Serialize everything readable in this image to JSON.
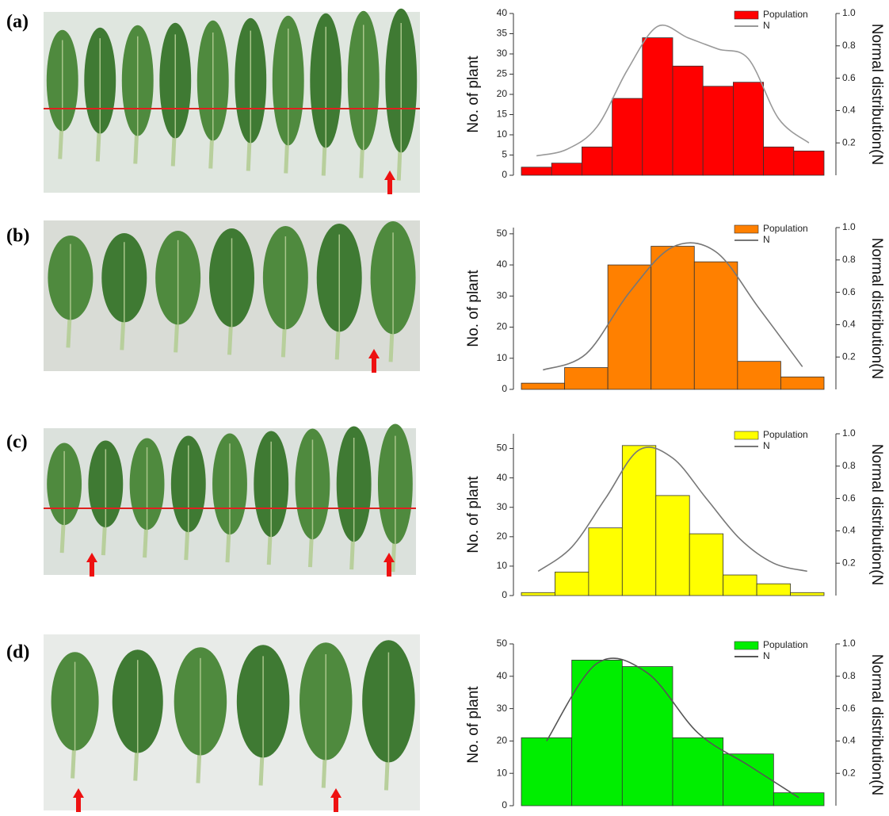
{
  "chart_data": [
    {
      "type": "bar",
      "label": "(a)",
      "ylabel": "No. of plant",
      "y2label": "Normal distribution(N",
      "categories": [
        null,
        null,
        null,
        null,
        null,
        null,
        null,
        null,
        null,
        null
      ],
      "series": [
        {
          "name": "Population",
          "color": "#ff0000",
          "values": [
            2,
            3,
            7,
            19,
            34,
            27,
            22,
            23,
            7,
            6
          ]
        },
        {
          "name": "N",
          "color": "#999999",
          "axis": "y2",
          "values": [
            0.12,
            0.16,
            0.3,
            0.65,
            0.92,
            0.85,
            0.78,
            0.72,
            0.35,
            0.2
          ]
        }
      ],
      "ylim": [
        0,
        40
      ],
      "yticks": [
        0,
        5,
        10,
        15,
        20,
        25,
        30,
        35,
        40
      ],
      "y2lim": [
        0,
        1.0
      ],
      "y2ticks": [
        {
          "value": 0.2,
          "label": "0.2"
        },
        {
          "value": 0.4,
          "label": "0.4"
        },
        {
          "value": 0.6,
          "label": "0.6"
        },
        {
          "value": 0.8,
          "label": "0.8"
        },
        {
          "value": 1.0,
          "label": "1.0"
        }
      ],
      "legend": "top-right"
    },
    {
      "type": "bar",
      "label": "(b)",
      "ylabel": "No. of plant",
      "y2label": "Normal distribution(N",
      "categories": [
        null,
        null,
        null,
        null,
        null,
        null,
        null
      ],
      "series": [
        {
          "name": "Population",
          "color": "#ff8000",
          "values": [
            2,
            7,
            40,
            46,
            41,
            9,
            4
          ]
        },
        {
          "name": "N",
          "color": "#777777",
          "axis": "y2",
          "values": [
            0.12,
            0.22,
            0.6,
            0.88,
            0.85,
            0.5,
            0.14
          ]
        }
      ],
      "ylim": [
        0,
        52
      ],
      "yticks": [
        0,
        10,
        20,
        30,
        40,
        50
      ],
      "y2lim": [
        0,
        1.0
      ],
      "y2ticks": [
        {
          "value": 0.2,
          "label": "0.2"
        },
        {
          "value": 0.4,
          "label": "0.4"
        },
        {
          "value": 0.6,
          "label": "0.6"
        },
        {
          "value": 0.8,
          "label": "0.8"
        },
        {
          "value": 1.0,
          "label": "1.0"
        }
      ],
      "legend": "top-right"
    },
    {
      "type": "bar",
      "label": "(c)",
      "ylabel": "No. of plant",
      "y2label": "Normal distribution(N",
      "categories": [
        null,
        null,
        null,
        null,
        null,
        null,
        null,
        null,
        null
      ],
      "series": [
        {
          "name": "Population",
          "color": "#ffff00",
          "values": [
            1,
            8,
            23,
            51,
            34,
            21,
            7,
            4,
            1
          ]
        },
        {
          "name": "N",
          "color": "#777777",
          "axis": "y2",
          "values": [
            0.15,
            0.3,
            0.6,
            0.9,
            0.85,
            0.6,
            0.35,
            0.2,
            0.15
          ]
        }
      ],
      "ylim": [
        0,
        55
      ],
      "yticks": [
        0,
        10,
        20,
        30,
        40,
        50
      ],
      "y2lim": [
        0,
        1.0
      ],
      "y2ticks": [
        {
          "value": 0.2,
          "label": "0.2"
        },
        {
          "value": 0.4,
          "label": "0.4"
        },
        {
          "value": 0.6,
          "label": "0.6"
        },
        {
          "value": 0.8,
          "label": "0.8"
        },
        {
          "value": 1.0,
          "label": "1.0"
        }
      ],
      "legend": "top-right"
    },
    {
      "type": "bar",
      "label": "(d)",
      "ylabel": "No. of plant",
      "y2label": "Normal distribution(N",
      "categories": [
        null,
        null,
        null,
        null,
        null,
        null
      ],
      "series": [
        {
          "name": "Population",
          "color": "#00ee00",
          "values": [
            21,
            45,
            43,
            21,
            16,
            4
          ]
        },
        {
          "name": "N",
          "color": "#555555",
          "axis": "y2",
          "values": [
            0.4,
            0.88,
            0.82,
            0.45,
            0.25,
            0.05
          ]
        }
      ],
      "ylim": [
        0,
        50
      ],
      "yticks": [
        0,
        10,
        20,
        30,
        40,
        50
      ],
      "y2lim": [
        0,
        1.0
      ],
      "y2ticks": [
        {
          "value": 0.2,
          "label": "0.2"
        },
        {
          "value": 0.4,
          "label": "0.4"
        },
        {
          "value": 0.6,
          "label": "0.6"
        },
        {
          "value": 0.8,
          "label": "0.8"
        },
        {
          "value": 1.0,
          "label": "1.0"
        }
      ],
      "legend": "top-right"
    }
  ]
}
